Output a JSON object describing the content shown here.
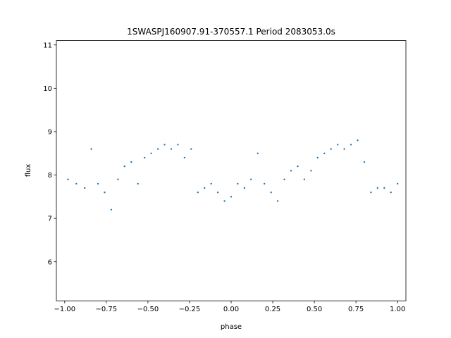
{
  "chart_data": {
    "type": "scatter",
    "title": "1SWASPJ160907.91-370557.1 Period 2083053.0s",
    "xlabel": "phase",
    "ylabel": "flux",
    "xlim": [
      -1.05,
      1.05
    ],
    "ylim": [
      5.1,
      11.1
    ],
    "grid": false,
    "x_ticks": [
      -1.0,
      -0.75,
      -0.5,
      -0.25,
      0.0,
      0.25,
      0.5,
      0.75,
      1.0
    ],
    "x_tick_labels": [
      "−1.00",
      "−0.75",
      "−0.50",
      "−0.25",
      "0.00",
      "0.25",
      "0.50",
      "0.75",
      "1.00"
    ],
    "y_ticks": [
      6,
      7,
      8,
      9,
      10,
      11
    ],
    "y_tick_labels": [
      "6",
      "7",
      "8",
      "9",
      "10",
      "11"
    ],
    "marker_color": "#1f77b4",
    "series": [
      {
        "x": [
          -0.98,
          -0.93,
          -0.88,
          -0.84,
          -0.8,
          -0.76,
          -0.72,
          -0.68,
          -0.64,
          -0.6,
          -0.56,
          -0.52,
          -0.48,
          -0.44,
          -0.4,
          -0.36,
          -0.32,
          -0.28,
          -0.24,
          -0.2,
          -0.16,
          -0.12,
          -0.08,
          -0.04,
          0.0,
          0.04,
          0.08,
          0.12,
          0.16,
          0.2,
          0.24,
          0.28,
          0.32,
          0.36,
          0.4,
          0.44,
          0.48,
          0.52,
          0.56,
          0.6,
          0.64,
          0.68,
          0.72,
          0.76,
          0.8,
          0.84,
          0.88,
          0.92,
          0.96,
          1.0
        ],
        "y": [
          7.9,
          7.8,
          7.7,
          8.6,
          7.8,
          7.6,
          7.2,
          7.9,
          8.2,
          8.3,
          7.8,
          8.4,
          8.5,
          8.6,
          8.7,
          8.6,
          8.7,
          8.4,
          8.6,
          7.6,
          7.7,
          7.8,
          7.6,
          7.4,
          7.5,
          7.8,
          7.7,
          7.9,
          8.5,
          7.8,
          7.6,
          7.4,
          7.9,
          8.1,
          8.2,
          7.9,
          8.1,
          8.4,
          8.5,
          8.6,
          8.7,
          8.6,
          8.7,
          8.8,
          8.3,
          7.6,
          7.7,
          7.7,
          7.6,
          7.8
        ]
      }
    ]
  }
}
